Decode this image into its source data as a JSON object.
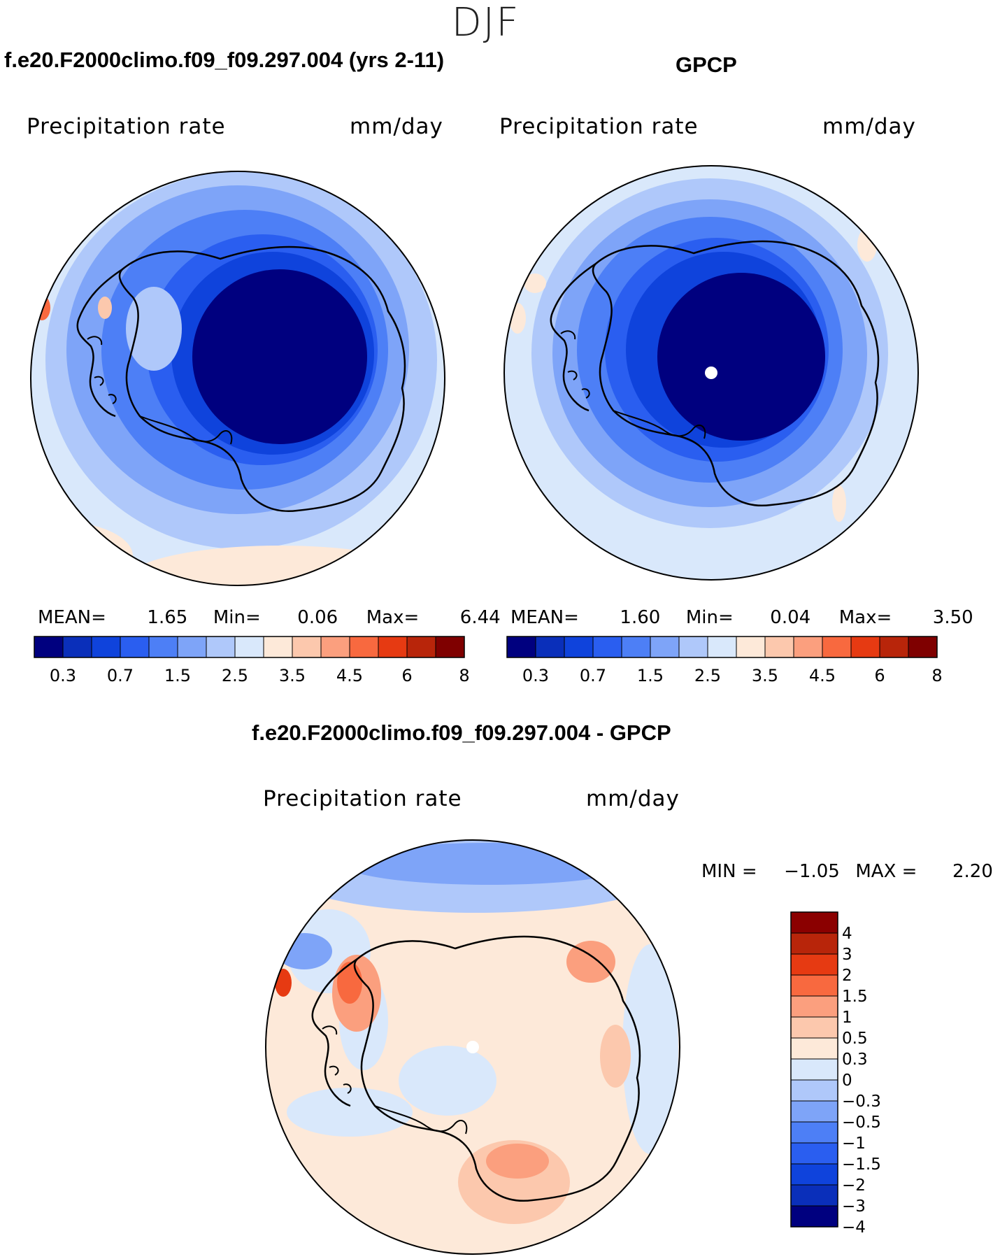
{
  "season": "DJF",
  "panels": [
    {
      "title": "f.e20.F2000climo.f09_f09.297.004 (yrs 2-11)",
      "variable": "Precipitation rate",
      "units": "mm/day",
      "stats": {
        "mean_label": "MEAN=",
        "mean": "1.65",
        "min_label": "Min=",
        "min": "0.06",
        "max_label": "Max=",
        "max": "6.44"
      }
    },
    {
      "title": "GPCP",
      "variable": "Precipitation rate",
      "units": "mm/day",
      "stats": {
        "mean_label": "MEAN=",
        "mean": "1.60",
        "min_label": "Min=",
        "min": "0.04",
        "max_label": "Max=",
        "max": "3.50"
      }
    }
  ],
  "diff": {
    "title": "f.e20.F2000climo.f09_f09.297.004 - GPCP",
    "variable": "Precipitation rate",
    "units": "mm/day",
    "min_label": "MIN =",
    "min": "−1.05",
    "max_label": "MAX =",
    "max": "2.20"
  },
  "abs_colorbar": {
    "colors": [
      "#00007f",
      "#0a2fba",
      "#0f43dc",
      "#2a5ef0",
      "#4d7ff6",
      "#7ea4f8",
      "#afc8fa",
      "#d9e8fb",
      "#fde9d9",
      "#fcc8ad",
      "#fb9f7e",
      "#f8693f",
      "#e63a12",
      "#b8250a",
      "#7f0000"
    ],
    "tick_labels": [
      "0.3",
      "0.7",
      "1.5",
      "2.5",
      "3.5",
      "4.5",
      "6",
      "8"
    ]
  },
  "diff_colorbar": {
    "colors_top_to_bottom": [
      "#8b0000",
      "#b8250a",
      "#e63a12",
      "#f8693f",
      "#fb9f7e",
      "#fcc8ad",
      "#fde9d9",
      "#d9e8fb",
      "#afc8fa",
      "#7ea4f8",
      "#4d7ff6",
      "#2a5ef0",
      "#0f43dc",
      "#0a2fba",
      "#00007f"
    ],
    "tick_labels": [
      "4",
      "3",
      "2",
      "1.5",
      "1",
      "0.5",
      "0.3",
      "0",
      "−0.3",
      "−0.5",
      "−1",
      "−1.5",
      "−2",
      "−3",
      "−4"
    ]
  },
  "coast_color": "#000000"
}
